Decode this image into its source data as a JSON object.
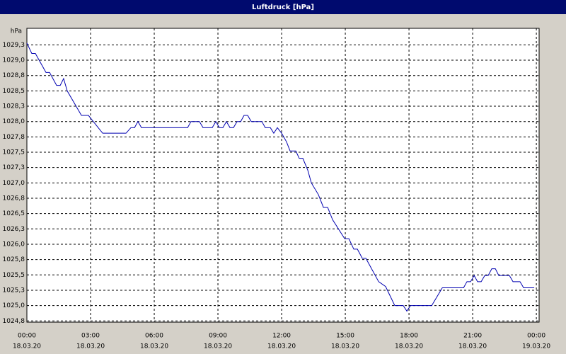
{
  "chart_data": {
    "type": "line",
    "title": "Luftdruck [hPa]",
    "y_unit": "hPa",
    "color": "#0000b0",
    "grid": true,
    "x": [
      0,
      0.23,
      0.4,
      0.9,
      1.07,
      1.4,
      1.57,
      1.73,
      1.9,
      2.57,
      2.9,
      3.13,
      3.57,
      4.67,
      4.9,
      5.07,
      5.23,
      5.4,
      7.57,
      7.73,
      8.13,
      8.3,
      8.73,
      8.9,
      9.07,
      9.23,
      9.4,
      9.57,
      9.73,
      9.9,
      10.07,
      10.23,
      10.4,
      10.57,
      11.07,
      11.23,
      11.47,
      11.63,
      11.8,
      12.0,
      12.23,
      12.4,
      12.67,
      12.83,
      13.0,
      13.23,
      13.4,
      13.73,
      13.97,
      14.17,
      14.4,
      14.97,
      15.17,
      15.4,
      15.57,
      15.8,
      15.97,
      16.57,
      16.9,
      17.33,
      17.73,
      17.9,
      18.07,
      19.07,
      19.57,
      20.57,
      20.73,
      20.9,
      21.07,
      21.23,
      21.4,
      21.57,
      21.73,
      21.9,
      22.07,
      22.23,
      22.73,
      22.9,
      23.23,
      23.4,
      23.9
    ],
    "values": [
      1029.28,
      1029.11,
      1029.11,
      1028.8,
      1028.8,
      1028.59,
      1028.59,
      1028.7,
      1028.5,
      1028.1,
      1028.1,
      1028.0,
      1027.81,
      1027.81,
      1027.9,
      1027.9,
      1028.0,
      1027.9,
      1027.9,
      1028.0,
      1028.0,
      1027.9,
      1027.9,
      1028.0,
      1027.9,
      1027.9,
      1028.0,
      1027.9,
      1027.9,
      1028.0,
      1028.0,
      1028.1,
      1028.1,
      1028.0,
      1028.0,
      1027.9,
      1027.9,
      1027.81,
      1027.9,
      1027.81,
      1027.67,
      1027.52,
      1027.52,
      1027.4,
      1027.4,
      1027.21,
      1027.0,
      1026.81,
      1026.6,
      1026.6,
      1026.4,
      1026.09,
      1026.09,
      1025.92,
      1025.92,
      1025.77,
      1025.77,
      1025.39,
      1025.31,
      1025.0,
      1025.0,
      1024.91,
      1025.0,
      1025.0,
      1025.29,
      1025.29,
      1025.39,
      1025.39,
      1025.49,
      1025.39,
      1025.39,
      1025.49,
      1025.49,
      1025.6,
      1025.6,
      1025.49,
      1025.49,
      1025.39,
      1025.39,
      1025.29,
      1025.29
    ],
    "xlim": [
      0,
      24.13
    ],
    "ylim": [
      1024.73,
      1029.52
    ],
    "xticks": [
      {
        "value": 0,
        "label": "00:00"
      },
      {
        "value": 3,
        "label": "03:00"
      },
      {
        "value": 6,
        "label": "06:00"
      },
      {
        "value": 9,
        "label": "09:00"
      },
      {
        "value": 12,
        "label": "12:00"
      },
      {
        "value": 15,
        "label": "15:00"
      },
      {
        "value": 18,
        "label": "18:00"
      },
      {
        "value": 21,
        "label": "21:00"
      },
      {
        "value": 24,
        "label": "00:00"
      }
    ],
    "xtick_dates": [
      "18.03.20",
      "18.03.20",
      "18.03.20",
      "18.03.20",
      "18.03.20",
      "18.03.20",
      "18.03.20",
      "18.03.20",
      "19.03.20"
    ],
    "yticks": [
      {
        "value": 1024.75,
        "label": "1024,8"
      },
      {
        "value": 1025.0,
        "label": "1025,0"
      },
      {
        "value": 1025.25,
        "label": "1025,3"
      },
      {
        "value": 1025.5,
        "label": "1025,5"
      },
      {
        "value": 1025.75,
        "label": "1025,8"
      },
      {
        "value": 1026.0,
        "label": "1026,0"
      },
      {
        "value": 1026.25,
        "label": "1026,3"
      },
      {
        "value": 1026.5,
        "label": "1026,5"
      },
      {
        "value": 1026.75,
        "label": "1026,8"
      },
      {
        "value": 1027.0,
        "label": "1027,0"
      },
      {
        "value": 1027.25,
        "label": "1027,3"
      },
      {
        "value": 1027.5,
        "label": "1027,5"
      },
      {
        "value": 1027.75,
        "label": "1027,8"
      },
      {
        "value": 1028.0,
        "label": "1028,0"
      },
      {
        "value": 1028.25,
        "label": "1028,3"
      },
      {
        "value": 1028.5,
        "label": "1028,5"
      },
      {
        "value": 1028.75,
        "label": "1028,8"
      },
      {
        "value": 1029.0,
        "label": "1029,0"
      },
      {
        "value": 1029.25,
        "label": "1029,3"
      }
    ]
  }
}
